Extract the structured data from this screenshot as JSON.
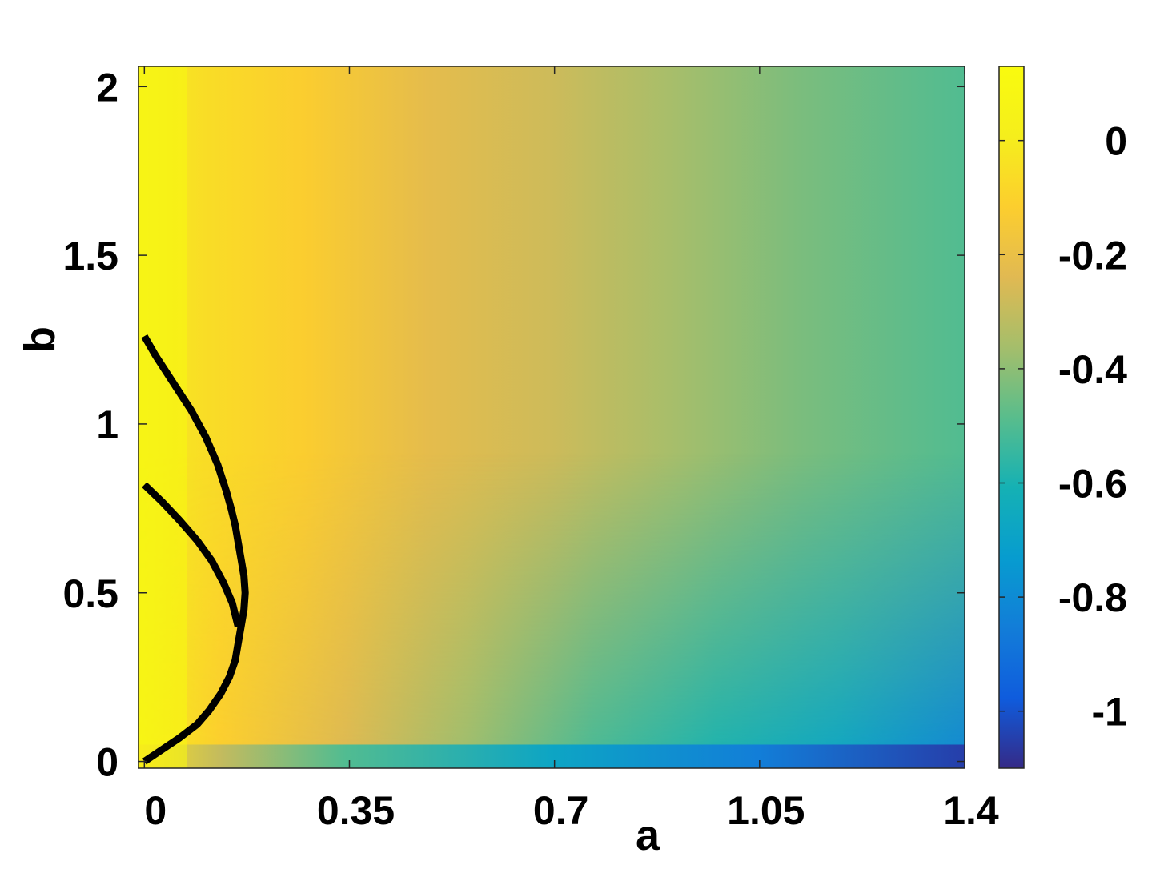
{
  "chart_data": {
    "type": "heatmap",
    "title": "",
    "xlabel": "a",
    "ylabel": "b",
    "xlim": [
      -0.01,
      1.4
    ],
    "ylim": [
      -0.02,
      2.06
    ],
    "x_ticks": [
      0,
      0.35,
      0.7,
      1.05,
      1.4
    ],
    "x_tick_labels": [
      "0",
      "0.35",
      "0.7",
      "1.05",
      "1.4"
    ],
    "y_ticks": [
      0,
      0.5,
      1,
      1.5,
      2
    ],
    "y_tick_labels": [
      "0",
      "0.5",
      "1",
      "1.5",
      "2"
    ],
    "colorbar": {
      "colormap": "parula",
      "clim": [
        -1.1,
        0.13
      ],
      "ticks": [
        0,
        -0.2,
        -0.4,
        -0.6,
        -0.8,
        -1
      ],
      "tick_labels": [
        "0",
        "-0.2",
        "-0.4",
        "-0.6",
        "-0.8",
        "-1"
      ]
    },
    "field_description_points": [
      {
        "a": 0.0,
        "b": 0.2,
        "value": 0.12
      },
      {
        "a": 0.15,
        "b": 1.0,
        "value": 0.02
      },
      {
        "a": 0.35,
        "b": 1.0,
        "value": -0.1
      },
      {
        "a": 0.7,
        "b": 1.0,
        "value": -0.3
      },
      {
        "a": 1.05,
        "b": 1.0,
        "value": -0.45
      },
      {
        "a": 1.4,
        "b": 1.0,
        "value": -0.52
      },
      {
        "a": 1.4,
        "b": 0.3,
        "value": -0.65
      },
      {
        "a": 1.4,
        "b": 0.0,
        "value": -1.05
      }
    ],
    "series": [
      {
        "x": [
          0.0,
          0.03,
          0.06,
          0.09,
          0.11,
          0.13,
          0.145,
          0.155,
          0.16,
          0.165,
          0.17,
          0.172,
          0.17,
          0.165,
          0.16,
          0.155,
          0.148,
          0.14,
          0.125,
          0.105,
          0.08,
          0.05,
          0.02,
          0.0
        ],
        "y": [
          0.0,
          0.035,
          0.07,
          0.11,
          0.15,
          0.2,
          0.25,
          0.3,
          0.35,
          0.4,
          0.45,
          0.5,
          0.55,
          0.6,
          0.65,
          0.7,
          0.75,
          0.8,
          0.88,
          0.96,
          1.04,
          1.12,
          1.2,
          1.26
        ],
        "color": "#000000"
      },
      {
        "x": [
          0.0,
          0.03,
          0.06,
          0.09,
          0.115,
          0.135,
          0.15,
          0.16
        ],
        "y": [
          0.82,
          0.77,
          0.715,
          0.655,
          0.595,
          0.53,
          0.47,
          0.4
        ],
        "color": "#000000"
      }
    ]
  }
}
